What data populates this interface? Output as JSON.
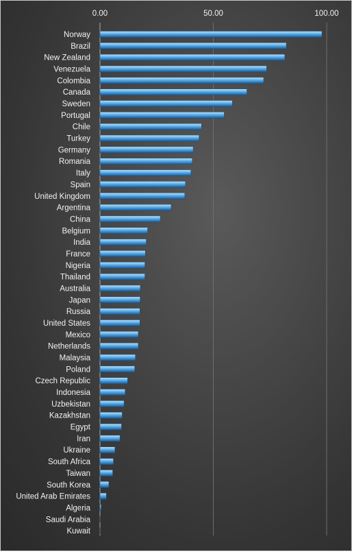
{
  "chart_data": {
    "type": "bar",
    "orientation": "horizontal",
    "title": "",
    "xlabel": "",
    "ylabel": "",
    "xlim": [
      0,
      100
    ],
    "x_ticks": [
      "0.00",
      "50.00",
      "100.00"
    ],
    "x_tick_values": [
      0,
      50,
      100
    ],
    "x_axis_position": "top",
    "grid": true,
    "legend": "none",
    "bar_color": "#4f9ed8",
    "categories": [
      "Norway",
      "Brazil",
      "New Zealand",
      "Venezuela",
      "Colombia",
      "Canada",
      "Sweden",
      "Portugal",
      "Chile",
      "Turkey",
      "Germany",
      "Romania",
      "Italy",
      "Spain",
      "United Kingdom",
      "Argentina",
      "China",
      "Belgium",
      "India",
      "France",
      "Nigeria",
      "Thailand",
      "Australia",
      "Japan",
      "Russia",
      "United States",
      "Mexico",
      "Netherlands",
      "Malaysia",
      "Poland",
      "Czech Republic",
      "Indonesia",
      "Uzbekistan",
      "Kazakhstan",
      "Egypt",
      "Iran",
      "Ukraine",
      "South Africa",
      "Taiwan",
      "South Korea",
      "United Arab Emirates",
      "Algeria",
      "Saudi Arabia",
      "Kuwait"
    ],
    "values": [
      97.9,
      82.2,
      81.5,
      73.5,
      72.2,
      64.8,
      58.4,
      54.8,
      44.8,
      43.7,
      41.1,
      40.7,
      40.1,
      37.7,
      37.4,
      31.4,
      26.6,
      21.0,
      20.4,
      20.0,
      19.8,
      19.8,
      17.8,
      17.7,
      17.6,
      17.6,
      16.9,
      16.9,
      15.6,
      15.3,
      12.2,
      11.1,
      10.6,
      9.8,
      9.5,
      8.8,
      6.6,
      5.9,
      5.6,
      3.9,
      2.8,
      0.5,
      0.05,
      0.02
    ]
  }
}
